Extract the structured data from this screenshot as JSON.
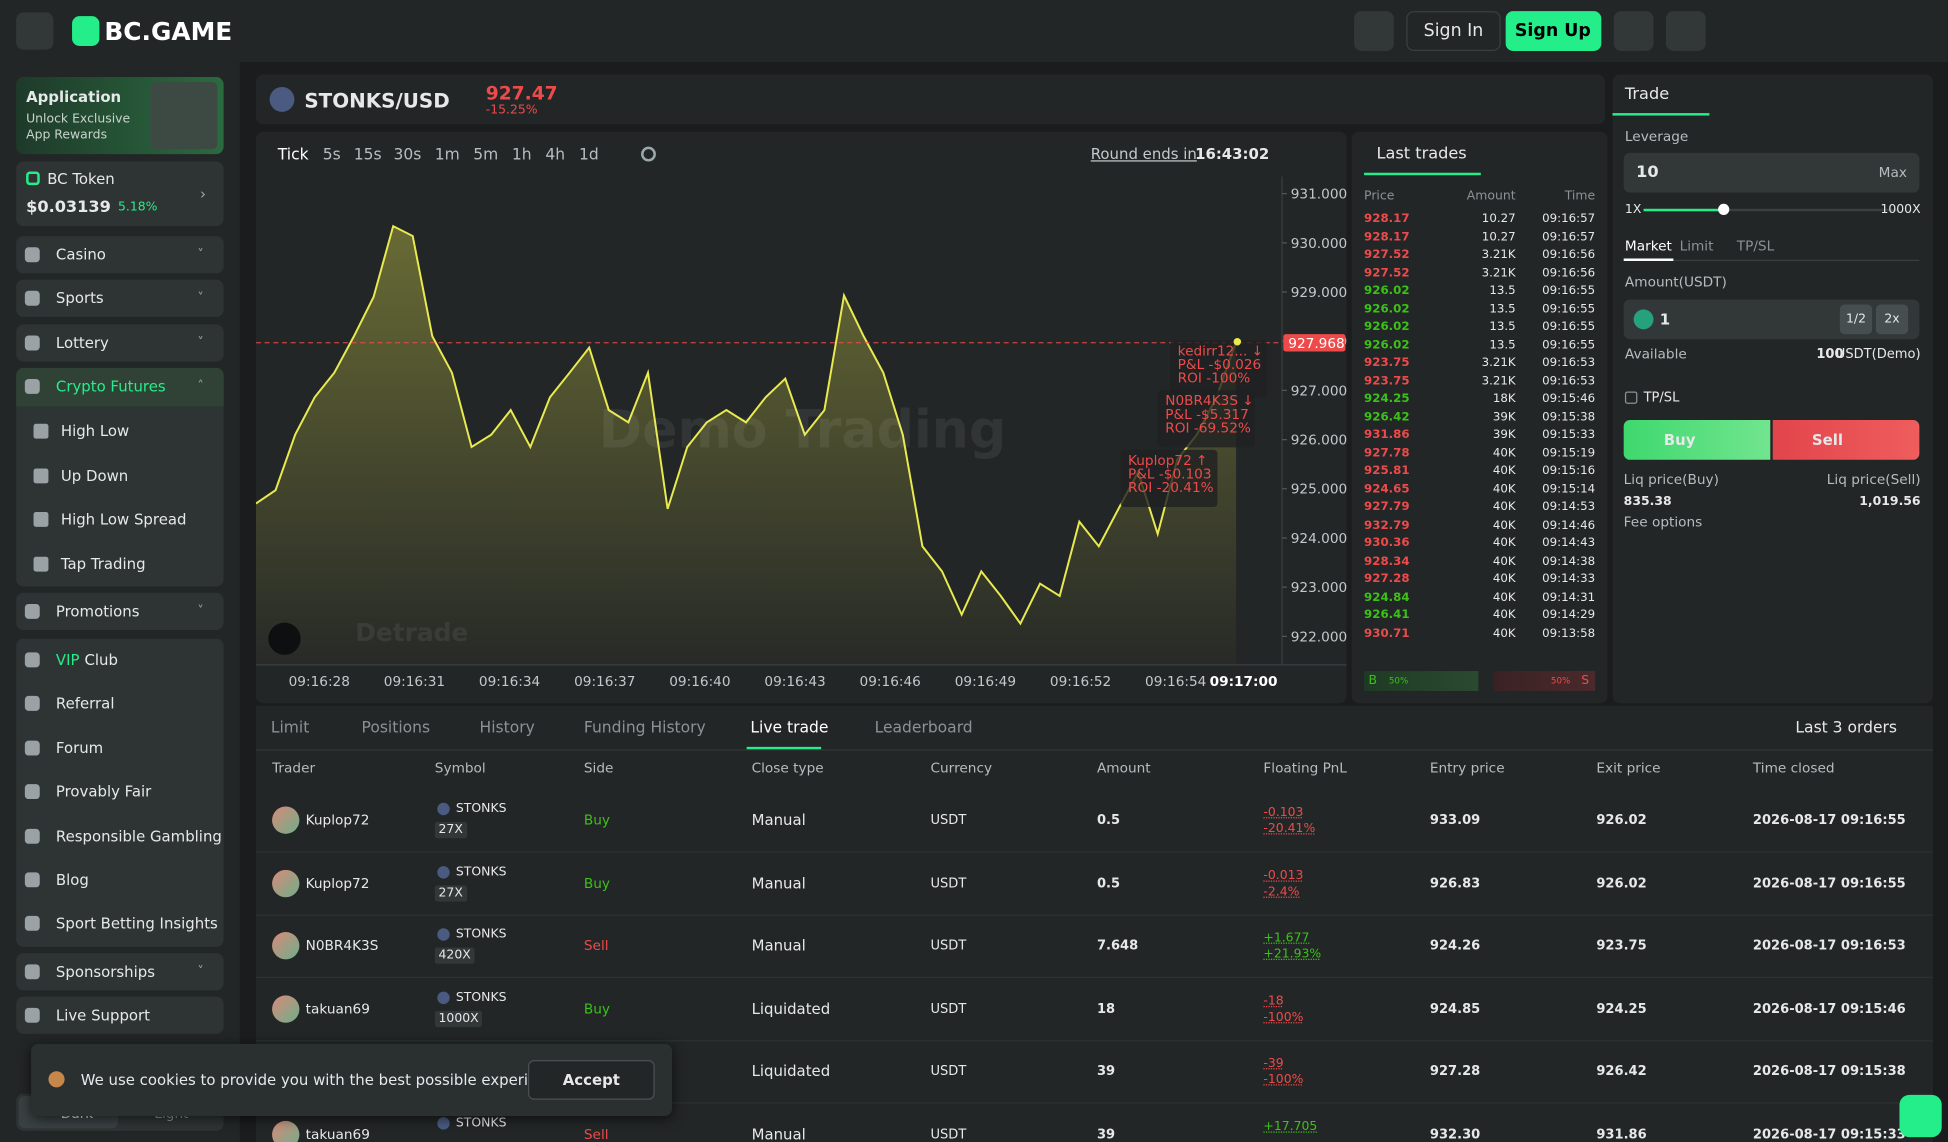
{
  "header": {
    "logo": "BC.GAME",
    "sign_in": "Sign In",
    "sign_up": "Sign Up"
  },
  "sidebar": {
    "promo": {
      "title": "Application",
      "subtitle": [
        "Unlock Exclusive",
        "App Rewards"
      ]
    },
    "token": {
      "name": "BC Token",
      "price": "$0.03139",
      "change": "5.18%"
    },
    "nav": [
      {
        "label": "Casino"
      },
      {
        "label": "Sports"
      },
      {
        "label": "Lottery"
      },
      {
        "label": "Crypto Futures",
        "children": [
          "High Low",
          "Up Down",
          "High Low Spread",
          "Tap Trading"
        ]
      },
      {
        "label": "Promotions"
      }
    ],
    "links": [
      {
        "highlight": "VIP",
        "label": "Club"
      },
      {
        "label": "Referral"
      },
      {
        "label": "Forum"
      },
      {
        "label": "Provably Fair"
      },
      {
        "label": "Responsible Gambling"
      },
      {
        "label": "Blog"
      },
      {
        "label": "Sport Betting Insights"
      }
    ],
    "bottom_nav": [
      {
        "label": "Sponsorships"
      },
      {
        "label": "Live Support"
      }
    ],
    "theme": [
      "Dark",
      "Light"
    ]
  },
  "pair": {
    "symbol": "STONKS/USD",
    "price": "927.47",
    "change": "-15.25%"
  },
  "toolbar": {
    "timeframes": [
      "Tick",
      "5s",
      "15s",
      "30s",
      "1m",
      "5m",
      "1h",
      "4h",
      "1d"
    ],
    "round_label": "Round ends in",
    "round_time": "16:43:02"
  },
  "chart_data": {
    "type": "line",
    "color": "#e9ea4f",
    "values": [
      924.7,
      924.97,
      926.1,
      926.86,
      927.36,
      928.1,
      928.9,
      930.34,
      930.14,
      928.1,
      927.36,
      925.85,
      926.1,
      926.6,
      925.85,
      926.86,
      927.36,
      927.87,
      926.6,
      926.35,
      927.36,
      924.59,
      925.85,
      926.35,
      926.6,
      926.35,
      926.86,
      927.24,
      926.1,
      926.6,
      928.93,
      928.1,
      927.36,
      926.1,
      923.83,
      923.32,
      922.44,
      923.32,
      922.82,
      922.26,
      923.07,
      922.82,
      924.33,
      923.83,
      924.59,
      925.34,
      924.08,
      925.6,
      926.1,
      926.86,
      927.99
    ],
    "ylim": [
      921.42,
      931.35
    ],
    "yticks": [
      {
        "value": 931,
        "label": "931.000"
      },
      {
        "value": 930,
        "label": "930.000"
      },
      {
        "value": 929,
        "label": "929.000"
      },
      {
        "value": 928,
        "label": "928.000"
      },
      {
        "value": 927,
        "label": "927.000"
      },
      {
        "value": 926,
        "label": "926.000"
      },
      {
        "value": 925,
        "label": "925.000"
      },
      {
        "value": 924,
        "label": "924.000"
      },
      {
        "value": 923,
        "label": "923.000"
      },
      {
        "value": 922,
        "label": "922.000"
      }
    ],
    "x_labels": [
      "09:16:28",
      "09:16:31",
      "09:16:34",
      "09:16:37",
      "09:16:40",
      "09:16:43",
      "09:16:46",
      "09:16:49",
      "09:16:52",
      "09:16:54",
      "09:17:00"
    ],
    "current_price": 927.968,
    "watermark": "Demo Trading",
    "brand": "Detrade",
    "annotations": [
      {
        "lines": [
          "kedirr12... ↓",
          "P&L -$0.026",
          "ROI -100%"
        ]
      },
      {
        "lines": [
          "N0BR4K3S ↓",
          "P&L -$5.317",
          "ROI -69.52%"
        ]
      },
      {
        "lines": [
          "Kuplop72 ↑",
          "P&L -$0.103",
          "ROI -20.41%"
        ]
      }
    ]
  },
  "last_trades": {
    "title": "Last trades",
    "headers": [
      "Price",
      "Amount",
      "Time"
    ],
    "rows": [
      {
        "price": "928.17",
        "amount": "10.27",
        "time": "09:16:57",
        "color": "#ed4b4b"
      },
      {
        "price": "928.17",
        "amount": "10.27",
        "time": "09:16:57",
        "color": "#ed4b4b"
      },
      {
        "price": "927.52",
        "amount": "3.21K",
        "time": "09:16:56",
        "color": "#ed4b4b"
      },
      {
        "price": "927.52",
        "amount": "3.21K",
        "time": "09:16:56",
        "color": "#ed4b4b"
      },
      {
        "price": "926.02",
        "amount": "13.5",
        "time": "09:16:55",
        "color": "#3bc117"
      },
      {
        "price": "926.02",
        "amount": "13.5",
        "time": "09:16:55",
        "color": "#3bc117"
      },
      {
        "price": "926.02",
        "amount": "13.5",
        "time": "09:16:55",
        "color": "#3bc117"
      },
      {
        "price": "926.02",
        "amount": "13.5",
        "time": "09:16:55",
        "color": "#3bc117"
      },
      {
        "price": "923.75",
        "amount": "3.21K",
        "time": "09:16:53",
        "color": "#ed4b4b"
      },
      {
        "price": "923.75",
        "amount": "3.21K",
        "time": "09:16:53",
        "color": "#ed4b4b"
      },
      {
        "price": "924.25",
        "amount": "18K",
        "time": "09:15:46",
        "color": "#3bc117"
      },
      {
        "price": "926.42",
        "amount": "39K",
        "time": "09:15:38",
        "color": "#3bc117"
      },
      {
        "price": "931.86",
        "amount": "39K",
        "time": "09:15:33",
        "color": "#ed4b4b"
      },
      {
        "price": "927.78",
        "amount": "40K",
        "time": "09:15:19",
        "color": "#ed4b4b"
      },
      {
        "price": "925.81",
        "amount": "40K",
        "time": "09:15:16",
        "color": "#ed4b4b"
      },
      {
        "price": "924.65",
        "amount": "40K",
        "time": "09:15:14",
        "color": "#ed4b4b"
      },
      {
        "price": "927.79",
        "amount": "40K",
        "time": "09:14:53",
        "color": "#ed4b4b"
      },
      {
        "price": "932.79",
        "amount": "40K",
        "time": "09:14:46",
        "color": "#ed4b4b"
      },
      {
        "price": "930.36",
        "amount": "40K",
        "time": "09:14:43",
        "color": "#ed4b4b"
      },
      {
        "price": "928.34",
        "amount": "40K",
        "time": "09:14:38",
        "color": "#ed4b4b"
      },
      {
        "price": "927.28",
        "amount": "40K",
        "time": "09:14:33",
        "color": "#ed4b4b"
      },
      {
        "price": "924.84",
        "amount": "40K",
        "time": "09:14:31",
        "color": "#3bc117"
      },
      {
        "price": "926.41",
        "amount": "40K",
        "time": "09:14:29",
        "color": "#3bc117"
      },
      {
        "price": "930.71",
        "amount": "40K",
        "time": "09:13:58",
        "color": "#ed4b4b"
      }
    ],
    "ratio": {
      "buy_letter": "B",
      "buy": "50%",
      "sell": "50%",
      "sell_letter": "S"
    }
  },
  "trade_panel": {
    "tab": "Trade",
    "leverage_label": "Leverage",
    "leverage": "10",
    "max": "Max",
    "min_lev": "1X",
    "max_lev": "1000X",
    "order_tabs": [
      "Market",
      "Limit",
      "TP/SL"
    ],
    "amount_label": "Amount(USDT)",
    "amount": "1",
    "half": "1/2",
    "double": "2x",
    "available_label": "Available",
    "available": "100",
    "available_unit": "USDT(Demo)",
    "tpsl": "TP/SL",
    "buy": "Buy",
    "sell": "Sell",
    "liq_buy_label": "Liq price(Buy)",
    "liq_sell_label": "Liq price(Sell)",
    "liq_buy": "835.38",
    "liq_sell": "1,019.56",
    "fee": "Fee options"
  },
  "bottom": {
    "tabs": [
      "Limit",
      "Positions",
      "History",
      "Funding History",
      "Live trade",
      "Leaderboard"
    ],
    "orders_label": "Last 3 orders",
    "table": {
      "headers": [
        "Trader",
        "Symbol",
        "Side",
        "Close type",
        "Currency",
        "Amount",
        "Floating PnL",
        "Entry price",
        "Exit price",
        "Time closed"
      ],
      "rows": [
        {
          "trader": "Kuplop72",
          "symbol": "STONKS",
          "lev": "27X",
          "side": "Buy",
          "close": "Manual",
          "currency": "USDT",
          "amount": "0.5",
          "pnl": "-0.103",
          "pnl_pct": "-20.41%",
          "entry": "933.09",
          "exit": "926.02",
          "time": "2026-08-17 09:16:55"
        },
        {
          "trader": "Kuplop72",
          "symbol": "STONKS",
          "lev": "27X",
          "side": "Buy",
          "close": "Manual",
          "currency": "USDT",
          "amount": "0.5",
          "pnl": "-0.013",
          "pnl_pct": "-2.4%",
          "entry": "926.83",
          "exit": "926.02",
          "time": "2026-08-17 09:16:55"
        },
        {
          "trader": "N0BR4K3S",
          "symbol": "STONKS",
          "lev": "420X",
          "side": "Sell",
          "close": "Manual",
          "currency": "USDT",
          "amount": "7.648",
          "pnl": "+1.677",
          "pnl_pct": "+21.93%",
          "entry": "924.26",
          "exit": "923.75",
          "time": "2026-08-17 09:16:53"
        },
        {
          "trader": "takuan69",
          "symbol": "STONKS",
          "lev": "1000X",
          "side": "Buy",
          "close": "Liquidated",
          "currency": "USDT",
          "amount": "18",
          "pnl": "-18",
          "pnl_pct": "-100%",
          "entry": "924.85",
          "exit": "924.25",
          "time": "2026-08-17 09:15:46"
        },
        {
          "close": "Liquidated",
          "currency": "USDT",
          "amount": "39",
          "pnl": "-39",
          "pnl_pct": "-100%",
          "entry": "927.28",
          "exit": "926.42",
          "time": "2026-08-17 09:15:38"
        },
        {
          "trader": "takuan69",
          "symbol": "STONKS",
          "side": "Sell",
          "close": "Manual",
          "currency": "USDT",
          "amount": "39",
          "pnl": "+17.705",
          "entry": "932.30",
          "exit": "931.86",
          "time": "2026-08-17 09:15:33"
        }
      ]
    }
  },
  "cookie": {
    "text": "We use cookies to provide you with the best possible experience",
    "accept": "Accept"
  }
}
